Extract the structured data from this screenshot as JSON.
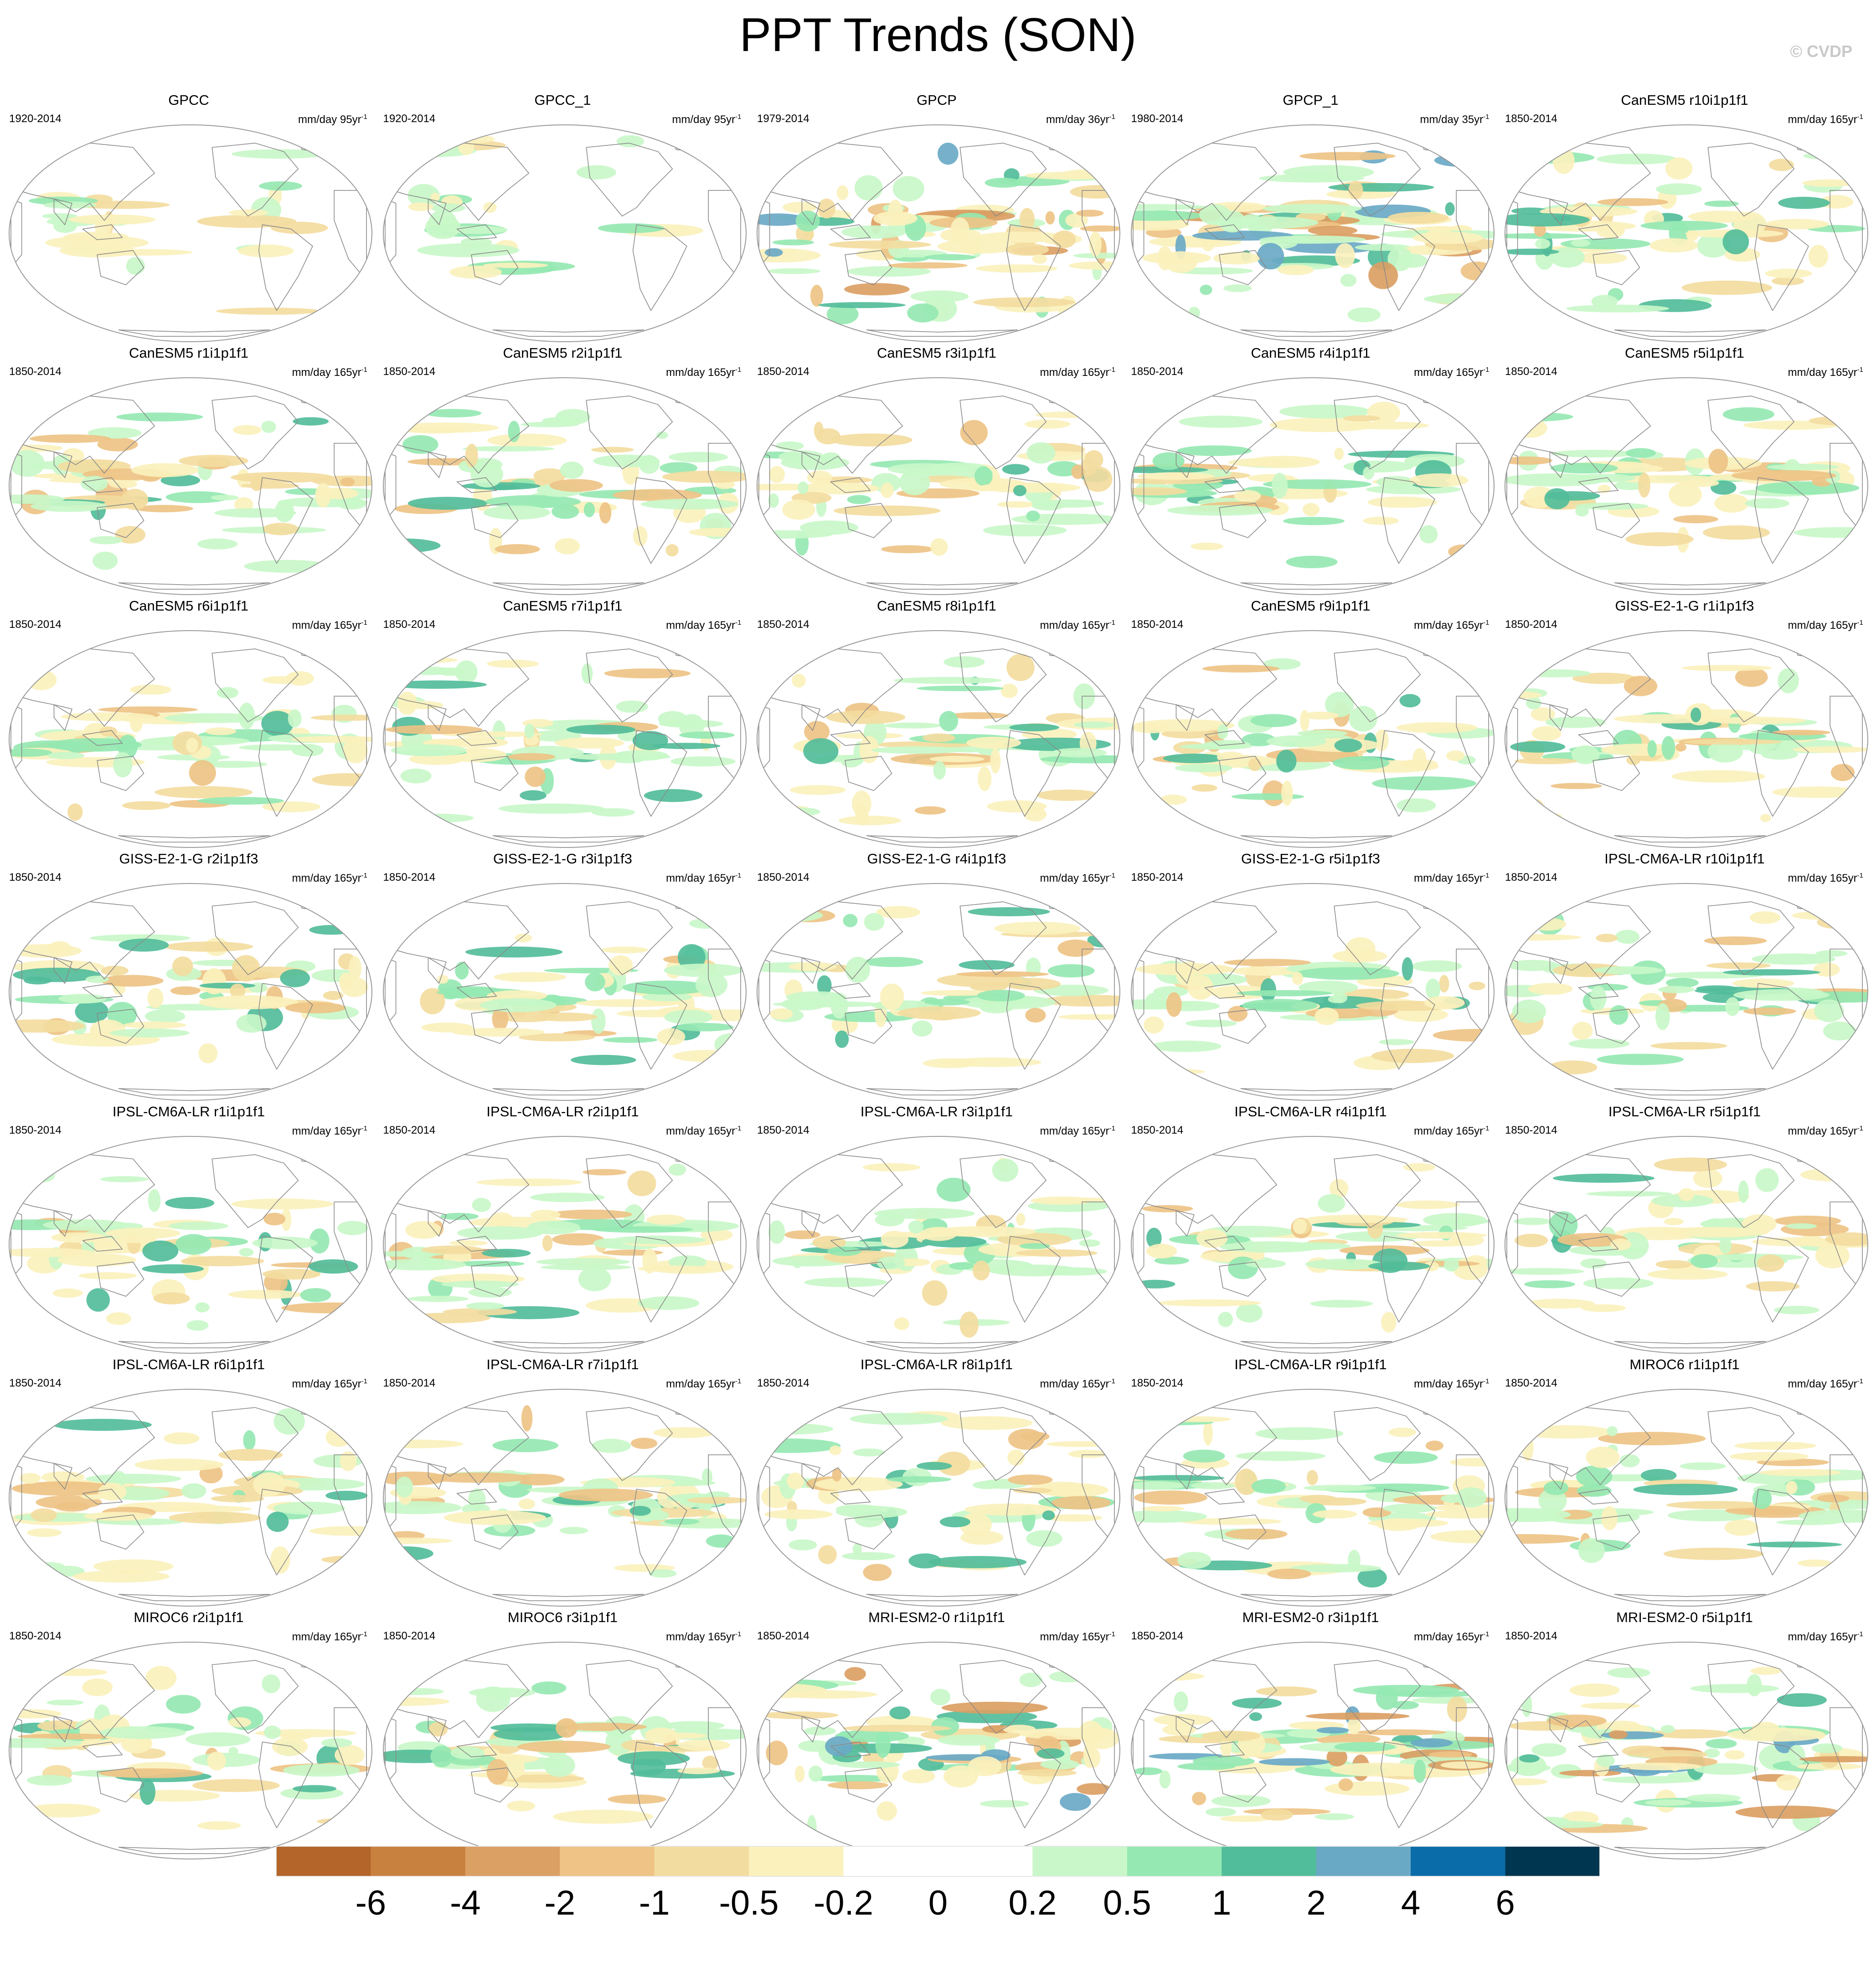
{
  "title": "PPT Trends (SON)",
  "copyright": "© CVDP",
  "colors": {
    "negative_strong": "#b3652a",
    "neutral": "#ffffff",
    "positive_strong": "#00364f",
    "coastline": "#8a8a8a"
  },
  "panels": [
    {
      "title": "GPCC",
      "period": "1920-2014",
      "units": "mm/day 95yr",
      "exp": "-1",
      "pattern": "land-only"
    },
    {
      "title": "GPCC_1",
      "period": "1920-2014",
      "units": "mm/day 95yr",
      "exp": "-1",
      "pattern": "land-only"
    },
    {
      "title": "GPCP",
      "period": "1979-2014",
      "units": "mm/day 36yr",
      "exp": "-1",
      "pattern": "observed-strong"
    },
    {
      "title": "GPCP_1",
      "period": "1980-2014",
      "units": "mm/day 35yr",
      "exp": "-1",
      "pattern": "observed-strong"
    },
    {
      "title": "CanESM5 r10i1p1f1",
      "period": "1850-2014",
      "units": "mm/day 165yr",
      "exp": "-1",
      "pattern": "model"
    },
    {
      "title": "CanESM5 r1i1p1f1",
      "period": "1850-2014",
      "units": "mm/day 165yr",
      "exp": "-1",
      "pattern": "model"
    },
    {
      "title": "CanESM5 r2i1p1f1",
      "period": "1850-2014",
      "units": "mm/day 165yr",
      "exp": "-1",
      "pattern": "model"
    },
    {
      "title": "CanESM5 r3i1p1f1",
      "period": "1850-2014",
      "units": "mm/day 165yr",
      "exp": "-1",
      "pattern": "model"
    },
    {
      "title": "CanESM5 r4i1p1f1",
      "period": "1850-2014",
      "units": "mm/day 165yr",
      "exp": "-1",
      "pattern": "model"
    },
    {
      "title": "CanESM5 r5i1p1f1",
      "period": "1850-2014",
      "units": "mm/day 165yr",
      "exp": "-1",
      "pattern": "model"
    },
    {
      "title": "CanESM5 r6i1p1f1",
      "period": "1850-2014",
      "units": "mm/day 165yr",
      "exp": "-1",
      "pattern": "model"
    },
    {
      "title": "CanESM5 r7i1p1f1",
      "period": "1850-2014",
      "units": "mm/day 165yr",
      "exp": "-1",
      "pattern": "model"
    },
    {
      "title": "CanESM5 r8i1p1f1",
      "period": "1850-2014",
      "units": "mm/day 165yr",
      "exp": "-1",
      "pattern": "model"
    },
    {
      "title": "CanESM5 r9i1p1f1",
      "period": "1850-2014",
      "units": "mm/day 165yr",
      "exp": "-1",
      "pattern": "model"
    },
    {
      "title": "GISS-E2-1-G r1i1p1f3",
      "period": "1850-2014",
      "units": "mm/day 165yr",
      "exp": "-1",
      "pattern": "model"
    },
    {
      "title": "GISS-E2-1-G r2i1p1f3",
      "period": "1850-2014",
      "units": "mm/day 165yr",
      "exp": "-1",
      "pattern": "model"
    },
    {
      "title": "GISS-E2-1-G r3i1p1f3",
      "period": "1850-2014",
      "units": "mm/day 165yr",
      "exp": "-1",
      "pattern": "model"
    },
    {
      "title": "GISS-E2-1-G r4i1p1f3",
      "period": "1850-2014",
      "units": "mm/day 165yr",
      "exp": "-1",
      "pattern": "model"
    },
    {
      "title": "GISS-E2-1-G r5i1p1f3",
      "period": "1850-2014",
      "units": "mm/day 165yr",
      "exp": "-1",
      "pattern": "model"
    },
    {
      "title": "IPSL-CM6A-LR r10i1p1f1",
      "period": "1850-2014",
      "units": "mm/day 165yr",
      "exp": "-1",
      "pattern": "model"
    },
    {
      "title": "IPSL-CM6A-LR r1i1p1f1",
      "period": "1850-2014",
      "units": "mm/day 165yr",
      "exp": "-1",
      "pattern": "model"
    },
    {
      "title": "IPSL-CM6A-LR r2i1p1f1",
      "period": "1850-2014",
      "units": "mm/day 165yr",
      "exp": "-1",
      "pattern": "model"
    },
    {
      "title": "IPSL-CM6A-LR r3i1p1f1",
      "period": "1850-2014",
      "units": "mm/day 165yr",
      "exp": "-1",
      "pattern": "model"
    },
    {
      "title": "IPSL-CM6A-LR r4i1p1f1",
      "period": "1850-2014",
      "units": "mm/day 165yr",
      "exp": "-1",
      "pattern": "model"
    },
    {
      "title": "IPSL-CM6A-LR r5i1p1f1",
      "period": "1850-2014",
      "units": "mm/day 165yr",
      "exp": "-1",
      "pattern": "model"
    },
    {
      "title": "IPSL-CM6A-LR r6i1p1f1",
      "period": "1850-2014",
      "units": "mm/day 165yr",
      "exp": "-1",
      "pattern": "model"
    },
    {
      "title": "IPSL-CM6A-LR r7i1p1f1",
      "period": "1850-2014",
      "units": "mm/day 165yr",
      "exp": "-1",
      "pattern": "model"
    },
    {
      "title": "IPSL-CM6A-LR r8i1p1f1",
      "period": "1850-2014",
      "units": "mm/day 165yr",
      "exp": "-1",
      "pattern": "model"
    },
    {
      "title": "IPSL-CM6A-LR r9i1p1f1",
      "period": "1850-2014",
      "units": "mm/day 165yr",
      "exp": "-1",
      "pattern": "model"
    },
    {
      "title": "MIROC6 r1i1p1f1",
      "period": "1850-2014",
      "units": "mm/day 165yr",
      "exp": "-1",
      "pattern": "model"
    },
    {
      "title": "MIROC6 r2i1p1f1",
      "period": "1850-2014",
      "units": "mm/day 165yr",
      "exp": "-1",
      "pattern": "model"
    },
    {
      "title": "MIROC6 r3i1p1f1",
      "period": "1850-2014",
      "units": "mm/day 165yr",
      "exp": "-1",
      "pattern": "model"
    },
    {
      "title": "MRI-ESM2-0 r1i1p1f1",
      "period": "1850-2014",
      "units": "mm/day 165yr",
      "exp": "-1",
      "pattern": "model-strong"
    },
    {
      "title": "MRI-ESM2-0 r3i1p1f1",
      "period": "1850-2014",
      "units": "mm/day 165yr",
      "exp": "-1",
      "pattern": "model-strong"
    },
    {
      "title": "MRI-ESM2-0 r5i1p1f1",
      "period": "1850-2014",
      "units": "mm/day 165yr",
      "exp": "-1",
      "pattern": "model-strong"
    }
  ],
  "colorbar": {
    "colors": [
      "#b3652a",
      "#c9813f",
      "#dba064",
      "#eec385",
      "#f3dc9f",
      "#fbf1bd",
      "#ffffff",
      "#ffffff",
      "#c9f7c9",
      "#95e8b2",
      "#52bd9a",
      "#6aa9c6",
      "#0a6da9",
      "#00364f"
    ],
    "labels": [
      "-6",
      "-4",
      "-2",
      "-1",
      "-0.5",
      "-0.2",
      "0",
      "0.2",
      "0.5",
      "1",
      "2",
      "4",
      "6"
    ]
  }
}
